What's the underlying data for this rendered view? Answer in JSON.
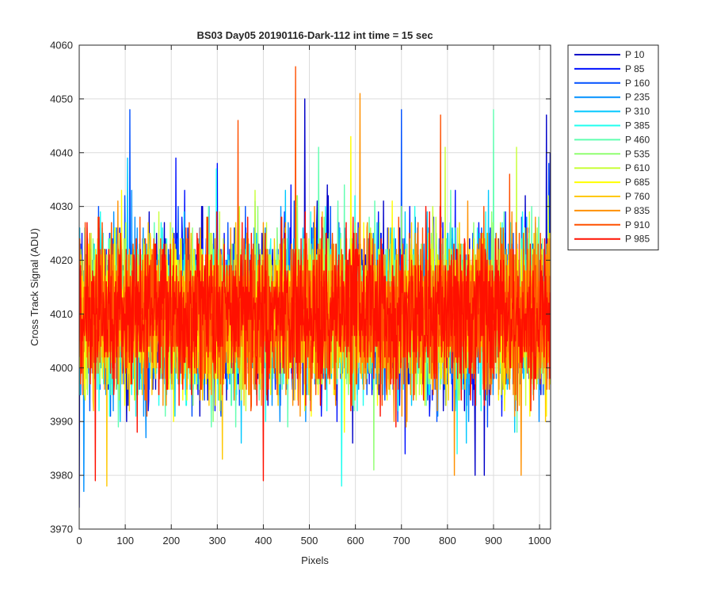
{
  "chart_data": {
    "type": "line",
    "title": "BS03 Day05 20190116-Dark-112 int time = 15 sec",
    "xlabel": "Pixels",
    "ylabel": "Cross Track Signal (ADU)",
    "xlim": [
      0,
      1024
    ],
    "ylim": [
      3970,
      4060
    ],
    "x_ticks": [
      0,
      100,
      200,
      300,
      400,
      500,
      600,
      700,
      800,
      900,
      1000
    ],
    "y_ticks": [
      3970,
      3980,
      3990,
      4000,
      4010,
      4020,
      4030,
      4040,
      4050,
      4060
    ],
    "grid": true,
    "legend_position": "outside-top-right",
    "x_points": 1024,
    "series": [
      {
        "name": "P 10",
        "color": "#0000c8",
        "mean": 4010,
        "noise": 7.0,
        "seed": 11,
        "spikes": [
          [
            0,
            3974
          ],
          [
            490,
            4050
          ],
          [
            860,
            3980
          ],
          [
            880,
            3980
          ],
          [
            1015,
            4047
          ],
          [
            1023,
            4040
          ]
        ]
      },
      {
        "name": "P 85",
        "color": "#0010ff",
        "mean": 4010,
        "noise": 7.0,
        "seed": 23,
        "spikes": [
          [
            210,
            4039
          ],
          [
            300,
            4038
          ],
          [
            708,
            3984
          ]
        ]
      },
      {
        "name": "P 160",
        "color": "#0050ff",
        "mean": 4010,
        "noise": 7.0,
        "seed": 37,
        "spikes": [
          [
            110,
            4048
          ],
          [
            700,
            4048
          ],
          [
            1020,
            4038
          ]
        ]
      },
      {
        "name": "P 235",
        "color": "#0090ff",
        "mean": 4010,
        "noise": 7.0,
        "seed": 41,
        "spikes": [
          [
            10,
            3977
          ]
        ]
      },
      {
        "name": "P 310",
        "color": "#00c8ff",
        "mean": 4010,
        "noise": 7.0,
        "seed": 53,
        "spikes": [
          [
            105,
            4039
          ]
        ]
      },
      {
        "name": "P 385",
        "color": "#20ffef",
        "mean": 4010,
        "noise": 7.0,
        "seed": 67,
        "spikes": [
          [
            570,
            3978
          ]
        ]
      },
      {
        "name": "P 460",
        "color": "#60ffb0",
        "mean": 4010,
        "noise": 7.0,
        "seed": 71,
        "spikes": [
          [
            520,
            4041
          ],
          [
            900,
            4048
          ]
        ]
      },
      {
        "name": "P 535",
        "color": "#90ff70",
        "mean": 4010,
        "noise": 7.0,
        "seed": 83,
        "spikes": [
          [
            640,
            3981
          ]
        ]
      },
      {
        "name": "P 610",
        "color": "#c8ff38",
        "mean": 4010,
        "noise": 7.0,
        "seed": 97,
        "spikes": [
          [
            795,
            4041
          ],
          [
            950,
            4041
          ]
        ]
      },
      {
        "name": "P 685",
        "color": "#ffff00",
        "mean": 4010,
        "noise": 7.0,
        "seed": 101,
        "spikes": [
          [
            590,
            4043
          ]
        ]
      },
      {
        "name": "P 760",
        "color": "#ffc800",
        "mean": 4010,
        "noise": 7.0,
        "seed": 113,
        "spikes": [
          [
            60,
            3978
          ]
        ]
      },
      {
        "name": "P 835",
        "color": "#ff9000",
        "mean": 4010,
        "noise": 7.0,
        "seed": 127,
        "spikes": [
          [
            610,
            4051
          ],
          [
            815,
            3980
          ],
          [
            960,
            3980
          ]
        ]
      },
      {
        "name": "P 910",
        "color": "#ff5000",
        "mean": 4010,
        "noise": 7.0,
        "seed": 131,
        "spikes": [
          [
            345,
            4046
          ],
          [
            470,
            4056
          ],
          [
            785,
            4047
          ]
        ]
      },
      {
        "name": "P 985",
        "color": "#ff1000",
        "mean": 4010,
        "noise": 7.0,
        "seed": 149,
        "spikes": [
          [
            400,
            3979
          ],
          [
            35,
            3979
          ]
        ]
      }
    ]
  }
}
